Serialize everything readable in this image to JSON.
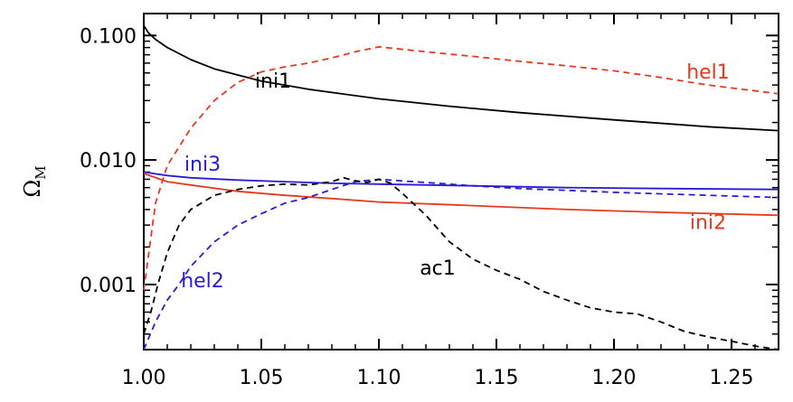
{
  "chart_data": {
    "type": "line",
    "title": "",
    "xlabel": "",
    "ylabel": "Ω",
    "ylabel_subscript": "M",
    "xscale": "linear",
    "yscale": "log",
    "xlim": [
      1.0,
      1.27
    ],
    "ylim": [
      0.0003,
      0.15
    ],
    "grid": false,
    "x_ticks": [
      1.0,
      1.05,
      1.1,
      1.15,
      1.2,
      1.25
    ],
    "x_tick_labels": [
      "1.00",
      "1.05",
      "1.10",
      "1.15",
      "1.20",
      "1.25"
    ],
    "y_ticks": [
      0.001,
      0.01,
      0.1
    ],
    "y_tick_labels": [
      "0.001",
      "0.010",
      "0.100"
    ],
    "series": [
      {
        "name": "ini1",
        "color": "#000000",
        "style": "solid",
        "x": [
          1.0,
          1.002,
          1.005,
          1.01,
          1.02,
          1.03,
          1.05,
          1.07,
          1.1,
          1.13,
          1.16,
          1.2,
          1.24,
          1.27
        ],
        "y": [
          0.12,
          0.105,
          0.093,
          0.08,
          0.064,
          0.054,
          0.043,
          0.037,
          0.031,
          0.027,
          0.024,
          0.021,
          0.0185,
          0.0172
        ]
      },
      {
        "name": "hel1",
        "color": "#e8391d",
        "style": "dashed",
        "x": [
          1.0,
          1.005,
          1.01,
          1.02,
          1.03,
          1.04,
          1.05,
          1.06,
          1.07,
          1.08,
          1.09,
          1.1,
          1.12,
          1.14,
          1.16,
          1.18,
          1.2,
          1.22,
          1.24,
          1.27
        ],
        "y": [
          0.0009,
          0.0045,
          0.009,
          0.018,
          0.03,
          0.042,
          0.051,
          0.056,
          0.06,
          0.066,
          0.074,
          0.081,
          0.074,
          0.068,
          0.062,
          0.057,
          0.052,
          0.046,
          0.04,
          0.034
        ]
      },
      {
        "name": "ini3",
        "color": "#2a1bd6",
        "style": "solid",
        "x": [
          1.0,
          1.01,
          1.02,
          1.04,
          1.06,
          1.08,
          1.1,
          1.14,
          1.18,
          1.22,
          1.27
        ],
        "y": [
          0.008,
          0.0075,
          0.0072,
          0.0069,
          0.0067,
          0.0065,
          0.0064,
          0.0062,
          0.006,
          0.0059,
          0.0058
        ]
      },
      {
        "name": "ini2",
        "color": "#e8391d",
        "style": "solid",
        "x": [
          1.0,
          1.01,
          1.02,
          1.04,
          1.06,
          1.08,
          1.1,
          1.14,
          1.18,
          1.22,
          1.27
        ],
        "y": [
          0.0078,
          0.0067,
          0.0063,
          0.0056,
          0.0052,
          0.0049,
          0.0046,
          0.0043,
          0.004,
          0.0038,
          0.0036
        ]
      },
      {
        "name": "hel2",
        "color": "#2a1bd6",
        "style": "dashed",
        "x": [
          1.0,
          1.005,
          1.01,
          1.015,
          1.02,
          1.03,
          1.04,
          1.05,
          1.06,
          1.07,
          1.08,
          1.09,
          1.1,
          1.12,
          1.14,
          1.16,
          1.18,
          1.2,
          1.24,
          1.27
        ],
        "y": [
          0.0003,
          0.0005,
          0.00075,
          0.001,
          0.0014,
          0.0022,
          0.003,
          0.0037,
          0.0045,
          0.005,
          0.0058,
          0.0067,
          0.007,
          0.0066,
          0.0062,
          0.0059,
          0.0057,
          0.0055,
          0.0052,
          0.005
        ]
      },
      {
        "name": "ac1",
        "color": "#000000",
        "style": "dashed",
        "x": [
          1.0,
          1.003,
          1.006,
          1.01,
          1.015,
          1.02,
          1.03,
          1.04,
          1.05,
          1.06,
          1.07,
          1.08,
          1.085,
          1.09,
          1.095,
          1.1,
          1.105,
          1.11,
          1.12,
          1.13,
          1.14,
          1.15,
          1.16,
          1.17,
          1.18,
          1.19,
          1.2,
          1.21,
          1.22,
          1.23,
          1.24,
          1.25,
          1.26,
          1.27
        ],
        "y": [
          0.0004,
          0.0006,
          0.001,
          0.0018,
          0.003,
          0.004,
          0.0052,
          0.0058,
          0.0062,
          0.0064,
          0.0063,
          0.0067,
          0.0072,
          0.0068,
          0.0066,
          0.007,
          0.0065,
          0.0054,
          0.0036,
          0.0022,
          0.0016,
          0.0013,
          0.0011,
          0.00088,
          0.00075,
          0.00065,
          0.0006,
          0.00058,
          0.0005,
          0.00042,
          0.00038,
          0.00035,
          0.00032,
          0.0003
        ]
      }
    ],
    "annotations": [
      {
        "text": "ini1",
        "x": 1.055,
        "y": 0.038,
        "color": "#000000"
      },
      {
        "text": "hel1",
        "x": 1.24,
        "y": 0.045,
        "color": "#e8391d"
      },
      {
        "text": "ini3",
        "x": 1.025,
        "y": 0.0082,
        "color": "#2a1bd6"
      },
      {
        "text": "ini2",
        "x": 1.24,
        "y": 0.0028,
        "color": "#e8391d"
      },
      {
        "text": "hel2",
        "x": 1.025,
        "y": 0.00095,
        "color": "#2a1bd6"
      },
      {
        "text": "ac1",
        "x": 1.125,
        "y": 0.0012,
        "color": "#000000"
      }
    ]
  }
}
